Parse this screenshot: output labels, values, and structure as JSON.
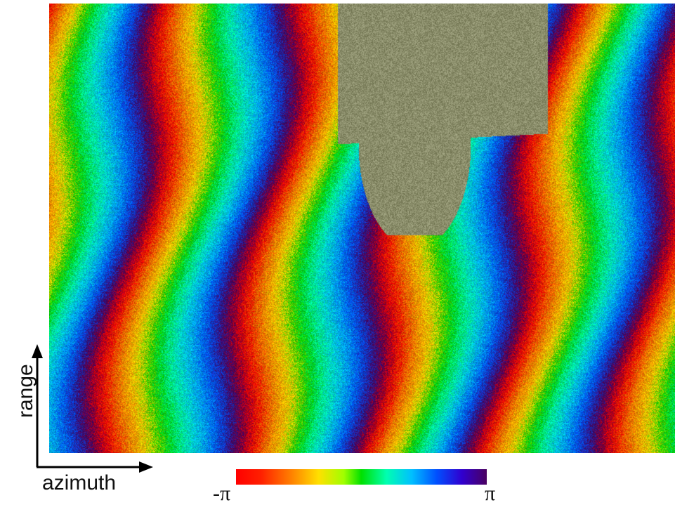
{
  "figure": {
    "axes": {
      "vertical": "range",
      "horizontal": "azimuth"
    },
    "colorbar": {
      "min_label": "-π",
      "max_label": "π",
      "colors": [
        "#ff0000",
        "#ff8000",
        "#ffe000",
        "#00e000",
        "#00ffb0",
        "#00c0ff",
        "#0050ff",
        "#4a0060"
      ]
    },
    "image": {
      "description_icon": "sar-interferogram-image",
      "decorrelated_color": "#8a8d6a"
    }
  }
}
